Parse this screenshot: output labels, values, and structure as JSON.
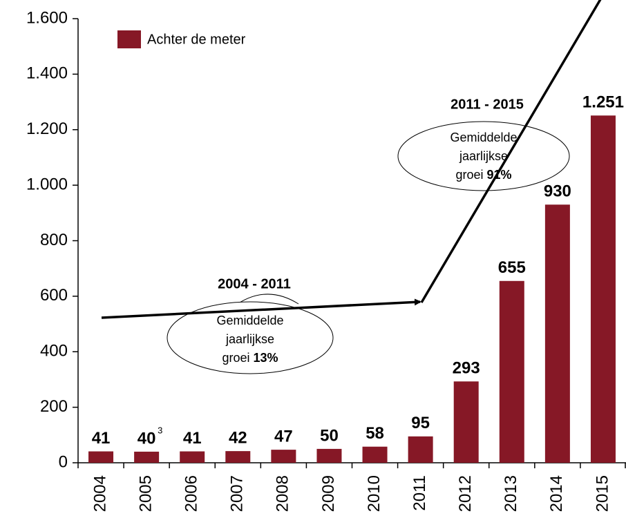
{
  "chart_data": {
    "type": "bar",
    "categories": [
      "2004",
      "2005",
      "2006",
      "2007",
      "2008",
      "2009",
      "2010",
      "2011",
      "2012",
      "2013",
      "2014",
      "2015"
    ],
    "series": [
      {
        "name": "Achter de meter",
        "color": "#861826",
        "values": [
          41,
          40,
          41,
          42,
          47,
          50,
          58,
          95,
          293,
          655,
          930,
          1251
        ],
        "value_labels": [
          "41",
          "40",
          "41",
          "42",
          "47",
          "50",
          "58",
          "95",
          "293",
          "655",
          "930",
          "1.251"
        ]
      }
    ],
    "ylim": [
      0,
      1600
    ],
    "yticks": [
      0,
      200,
      400,
      600,
      800,
      {
        "value": 1000,
        "label": "1.000"
      },
      {
        "value": 1200,
        "label": "1.200"
      },
      {
        "value": 1400,
        "label": "1.400"
      },
      {
        "value": 1600,
        "label": "1.600"
      }
    ],
    "legend": "top-left",
    "footnotes": [
      {
        "category": "2005",
        "text": "3"
      }
    ],
    "annotations": [
      {
        "period": "2004 - 2011",
        "lines": [
          "Gemiddelde",
          "jaarlijkse",
          "groei"
        ],
        "rate": "13%"
      },
      {
        "period": "2011 - 2015",
        "lines": [
          "Gemiddelde",
          "jaarlijkse",
          "groei"
        ],
        "rate": "91%"
      }
    ]
  }
}
